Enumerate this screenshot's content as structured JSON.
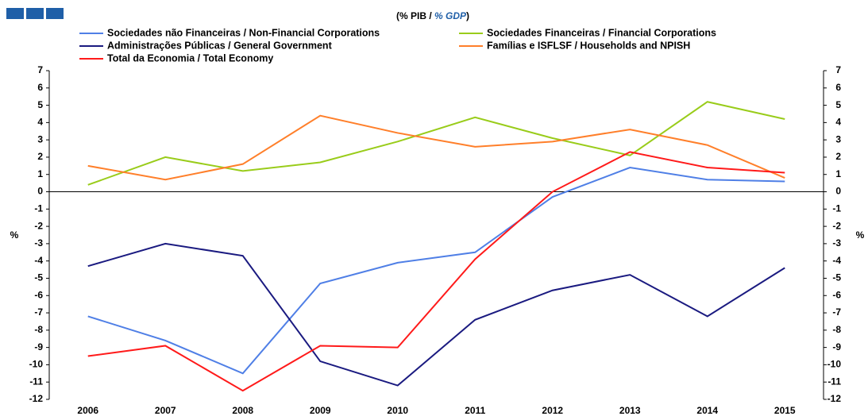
{
  "chart_data": {
    "type": "line",
    "title": [
      "(% PIB / ",
      "% GDP",
      ")"
    ],
    "y_label": "%",
    "y2_label": "%",
    "categories": [
      "2006",
      "2007",
      "2008",
      "2009",
      "2010",
      "2011",
      "2012",
      "2013",
      "2014",
      "2015"
    ],
    "series": [
      {
        "name": "Sociedades não Financeiras / Non-Financial Corporations",
        "color": "#4f7fe6",
        "values": [
          -7.2,
          -8.6,
          -10.5,
          -5.3,
          -4.1,
          -3.5,
          -0.3,
          1.4,
          0.7,
          0.6
        ]
      },
      {
        "name": "Sociedades Financeiras / Financial Corporations",
        "color": "#99cc1a",
        "values": [
          0.4,
          2.0,
          1.2,
          1.7,
          2.9,
          4.3,
          3.1,
          2.1,
          5.2,
          4.2
        ]
      },
      {
        "name": "Administrações Públicas / General Government",
        "color": "#1a1a80",
        "values": [
          -4.3,
          -3.0,
          -3.7,
          -9.8,
          -11.2,
          -7.4,
          -5.7,
          -4.8,
          -7.2,
          -4.4
        ]
      },
      {
        "name": "Famílias e ISFLSF / Households and NPISH",
        "color": "#ff7f2a",
        "values": [
          1.5,
          0.7,
          1.6,
          4.4,
          3.4,
          2.6,
          2.9,
          3.6,
          2.7,
          0.8
        ]
      },
      {
        "name": "Total da Economia / Total Economy",
        "color": "#ff1a1a",
        "values": [
          -9.5,
          -8.9,
          -11.5,
          -8.9,
          -9.0,
          -3.9,
          0.0,
          2.3,
          1.4,
          1.1
        ]
      }
    ],
    "ylim": [
      -12,
      7
    ],
    "yticks": [
      -12,
      -11,
      -10,
      -9,
      -8,
      -7,
      -6,
      -5,
      -4,
      -3,
      -2,
      -1,
      0,
      1,
      2,
      3,
      4,
      5,
      6,
      7
    ],
    "y2lim": [
      -12,
      7
    ],
    "y2ticks": [
      -12,
      -11,
      -10,
      -9,
      -8,
      -7,
      -6,
      -5,
      -4,
      -3,
      -2,
      -1,
      0,
      1,
      2,
      3,
      4,
      5,
      6,
      7
    ],
    "grid": false
  }
}
